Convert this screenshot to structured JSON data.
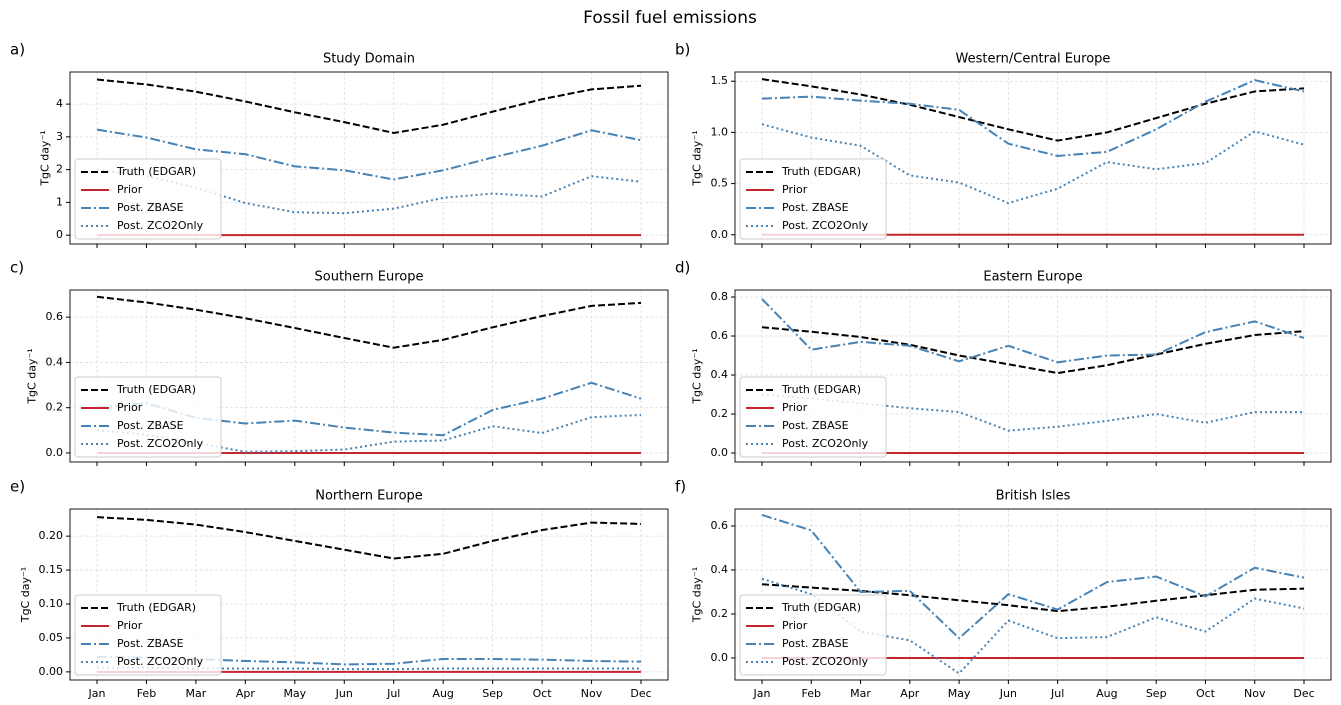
{
  "title": "Fossil fuel emissions",
  "chart_data": [
    {
      "type": "line",
      "label": "a)",
      "title": "Study Domain",
      "ylabel": "TgC day⁻¹",
      "xticklabels": false,
      "categories": [
        "Jan",
        "Feb",
        "Mar",
        "Apr",
        "May",
        "Jun",
        "Jul",
        "Aug",
        "Sep",
        "Oct",
        "Nov",
        "Dec"
      ],
      "ylim": [
        -0.27,
        4.98
      ],
      "yticks": [
        0,
        1,
        2,
        3,
        4
      ],
      "grid": true,
      "legend": "lower left",
      "series": [
        {
          "name": "Truth (EDGAR)",
          "color": "#000000",
          "linestyle": "dashed",
          "values": [
            4.75,
            4.6,
            4.38,
            4.08,
            3.75,
            3.45,
            3.12,
            3.37,
            3.77,
            4.15,
            4.45,
            4.56
          ]
        },
        {
          "name": "Prior",
          "color": "#c1272d",
          "linestyle": "solid",
          "values": [
            0,
            0,
            0,
            0,
            0,
            0,
            0,
            0,
            0,
            0,
            0,
            0
          ]
        },
        {
          "name": "Post. ZBASE",
          "color": "#4682b4",
          "linestyle": "dashdot",
          "values": [
            3.22,
            2.98,
            2.62,
            2.47,
            2.1,
            1.98,
            1.7,
            1.98,
            2.37,
            2.73,
            3.2,
            2.9
          ]
        },
        {
          "name": "Post. ZCO2Only",
          "color": "#4682b4",
          "linestyle": "dotted",
          "values": [
            2.0,
            1.8,
            1.45,
            0.98,
            0.7,
            0.67,
            0.81,
            1.14,
            1.27,
            1.18,
            1.8,
            1.63
          ]
        }
      ]
    },
    {
      "type": "line",
      "label": "b)",
      "title": "Western/Central Europe",
      "ylabel": "TgC day⁻¹",
      "xticklabels": false,
      "categories": [
        "Jan",
        "Feb",
        "Mar",
        "Apr",
        "May",
        "Jun",
        "Jul",
        "Aug",
        "Sep",
        "Oct",
        "Nov",
        "Dec"
      ],
      "ylim": [
        -0.09,
        1.59
      ],
      "yticks": [
        {
          "value": 0,
          "label": "0.0"
        },
        {
          "value": 0.5,
          "label": "0.5"
        },
        {
          "value": 1,
          "label": "1.0"
        },
        {
          "value": 1.5,
          "label": "1.5"
        }
      ],
      "grid": true,
      "legend": "lower left",
      "series": [
        {
          "name": "Truth (EDGAR)",
          "color": "#000000",
          "linestyle": "dashed",
          "values": [
            1.52,
            1.45,
            1.37,
            1.27,
            1.15,
            1.03,
            0.92,
            1.0,
            1.14,
            1.28,
            1.4,
            1.43
          ]
        },
        {
          "name": "Prior",
          "color": "#c1272d",
          "linestyle": "solid",
          "values": [
            0,
            0,
            0,
            0,
            0,
            0,
            0,
            0,
            0,
            0,
            0,
            0
          ]
        },
        {
          "name": "Post. ZBASE",
          "color": "#4682b4",
          "linestyle": "dashdot",
          "values": [
            1.33,
            1.35,
            1.31,
            1.28,
            1.22,
            0.89,
            0.77,
            0.81,
            1.03,
            1.3,
            1.51,
            1.4
          ]
        },
        {
          "name": "Post. ZCO2Only",
          "color": "#4682b4",
          "linestyle": "dotted",
          "values": [
            1.08,
            0.95,
            0.87,
            0.58,
            0.51,
            0.31,
            0.45,
            0.71,
            0.64,
            0.7,
            1.01,
            0.88
          ]
        }
      ]
    },
    {
      "type": "line",
      "label": "c)",
      "title": "Southern Europe",
      "ylabel": "TgC day⁻¹",
      "xticklabels": false,
      "categories": [
        "Jan",
        "Feb",
        "Mar",
        "Apr",
        "May",
        "Jun",
        "Jul",
        "Aug",
        "Sep",
        "Oct",
        "Nov",
        "Dec"
      ],
      "ylim": [
        -0.04,
        0.72
      ],
      "yticks": [
        {
          "value": 0,
          "label": "0.0"
        },
        0.2,
        0.4,
        0.6
      ],
      "grid": true,
      "legend": "lower left",
      "series": [
        {
          "name": "Truth (EDGAR)",
          "color": "#000000",
          "linestyle": "dashed",
          "values": [
            0.69,
            0.665,
            0.633,
            0.595,
            0.552,
            0.508,
            0.465,
            0.5,
            0.555,
            0.605,
            0.65,
            0.663
          ]
        },
        {
          "name": "Prior",
          "color": "#c1272d",
          "linestyle": "solid",
          "values": [
            0,
            0,
            0,
            0,
            0,
            0,
            0,
            0,
            0,
            0,
            0,
            0
          ]
        },
        {
          "name": "Post. ZBASE",
          "color": "#4682b4",
          "linestyle": "dashdot",
          "values": [
            0.2,
            0.22,
            0.155,
            0.13,
            0.143,
            0.112,
            0.09,
            0.078,
            0.19,
            0.24,
            0.31,
            0.24
          ]
        },
        {
          "name": "Post. ZCO2Only",
          "color": "#4682b4",
          "linestyle": "dotted",
          "values": [
            0.1,
            0.08,
            0.045,
            0.005,
            0.008,
            0.015,
            0.05,
            0.055,
            0.118,
            0.088,
            0.158,
            0.168
          ]
        }
      ]
    },
    {
      "type": "line",
      "label": "d)",
      "title": "Eastern Europe",
      "ylabel": "TgC day⁻¹",
      "xticklabels": false,
      "categories": [
        "Jan",
        "Feb",
        "Mar",
        "Apr",
        "May",
        "Jun",
        "Jul",
        "Aug",
        "Sep",
        "Oct",
        "Nov",
        "Dec"
      ],
      "ylim": [
        -0.046,
        0.836
      ],
      "yticks": [
        {
          "value": 0,
          "label": "0.0"
        },
        0.2,
        0.4,
        0.6,
        0.8
      ],
      "grid": true,
      "legend": "lower left",
      "series": [
        {
          "name": "Truth (EDGAR)",
          "color": "#000000",
          "linestyle": "dashed",
          "values": [
            0.645,
            0.622,
            0.595,
            0.555,
            0.5,
            0.455,
            0.41,
            0.45,
            0.505,
            0.56,
            0.605,
            0.625
          ]
        },
        {
          "name": "Prior",
          "color": "#c1272d",
          "linestyle": "solid",
          "values": [
            0,
            0,
            0,
            0,
            0,
            0,
            0,
            0,
            0,
            0,
            0,
            0
          ]
        },
        {
          "name": "Post. ZBASE",
          "color": "#4682b4",
          "linestyle": "dashdot",
          "values": [
            0.79,
            0.53,
            0.57,
            0.55,
            0.47,
            0.55,
            0.465,
            0.5,
            0.505,
            0.62,
            0.675,
            0.59
          ]
        },
        {
          "name": "Post. ZCO2Only",
          "color": "#4682b4",
          "linestyle": "dotted",
          "values": [
            0.3,
            0.28,
            0.255,
            0.23,
            0.21,
            0.115,
            0.135,
            0.165,
            0.2,
            0.155,
            0.21,
            0.21
          ]
        }
      ]
    },
    {
      "type": "line",
      "label": "e)",
      "title": "Northern Europe",
      "ylabel": "TgC day⁻¹",
      "xticklabels": true,
      "categories": [
        "Jan",
        "Feb",
        "Mar",
        "Apr",
        "May",
        "Jun",
        "Jul",
        "Aug",
        "Sep",
        "Oct",
        "Nov",
        "Dec"
      ],
      "ylim": [
        -0.012,
        0.24
      ],
      "yticks": [
        {
          "value": 0,
          "label": "0.00"
        },
        {
          "value": 0.05,
          "label": "0.05"
        },
        {
          "value": 0.1,
          "label": "0.10"
        },
        {
          "value": 0.15,
          "label": "0.15"
        },
        {
          "value": 0.2,
          "label": "0.20"
        }
      ],
      "grid": true,
      "legend": "lower left",
      "series": [
        {
          "name": "Truth (EDGAR)",
          "color": "#000000",
          "linestyle": "dashed",
          "values": [
            0.228,
            0.224,
            0.217,
            0.206,
            0.193,
            0.18,
            0.167,
            0.174,
            0.193,
            0.209,
            0.22,
            0.218
          ]
        },
        {
          "name": "Prior",
          "color": "#c1272d",
          "linestyle": "solid",
          "values": [
            0,
            0,
            0,
            0,
            0,
            0,
            0,
            0,
            0,
            0,
            0,
            0
          ]
        },
        {
          "name": "Post. ZBASE",
          "color": "#4682b4",
          "linestyle": "dashdot",
          "values": [
            0.022,
            0.021,
            0.019,
            0.016,
            0.014,
            0.011,
            0.012,
            0.019,
            0.019,
            0.018,
            0.016,
            0.015
          ]
        },
        {
          "name": "Post. ZCO2Only",
          "color": "#4682b4",
          "linestyle": "dotted",
          "values": [
            0.006,
            0.006,
            0.005,
            0.005,
            0.005,
            0.004,
            0.004,
            0.005,
            0.005,
            0.005,
            0.005,
            0.005
          ]
        }
      ]
    },
    {
      "type": "line",
      "label": "f)",
      "title": "British Isles",
      "ylabel": "TgC day⁻¹",
      "xticklabels": true,
      "categories": [
        "Jan",
        "Feb",
        "Mar",
        "Apr",
        "May",
        "Jun",
        "Jul",
        "Aug",
        "Sep",
        "Oct",
        "Nov",
        "Dec"
      ],
      "ylim": [
        -0.1,
        0.677
      ],
      "yticks": [
        {
          "value": 0,
          "label": "0.0"
        },
        0.2,
        0.4,
        0.6
      ],
      "grid": true,
      "legend": "lower left",
      "series": [
        {
          "name": "Truth (EDGAR)",
          "color": "#000000",
          "linestyle": "dashed",
          "values": [
            0.335,
            0.32,
            0.305,
            0.285,
            0.262,
            0.24,
            0.213,
            0.233,
            0.26,
            0.285,
            0.31,
            0.315
          ]
        },
        {
          "name": "Prior",
          "color": "#c1272d",
          "linestyle": "solid",
          "values": [
            0,
            0,
            0,
            0,
            0,
            0,
            0,
            0,
            0,
            0,
            0,
            0
          ]
        },
        {
          "name": "Post. ZBASE",
          "color": "#4682b4",
          "linestyle": "dashdot",
          "values": [
            0.65,
            0.58,
            0.3,
            0.305,
            0.09,
            0.29,
            0.22,
            0.345,
            0.37,
            0.28,
            0.41,
            0.365
          ]
        },
        {
          "name": "Post. ZCO2Only",
          "color": "#4682b4",
          "linestyle": "dotted",
          "values": [
            0.36,
            0.29,
            0.12,
            0.08,
            -0.07,
            0.17,
            0.09,
            0.095,
            0.185,
            0.12,
            0.27,
            0.225
          ]
        }
      ]
    }
  ]
}
